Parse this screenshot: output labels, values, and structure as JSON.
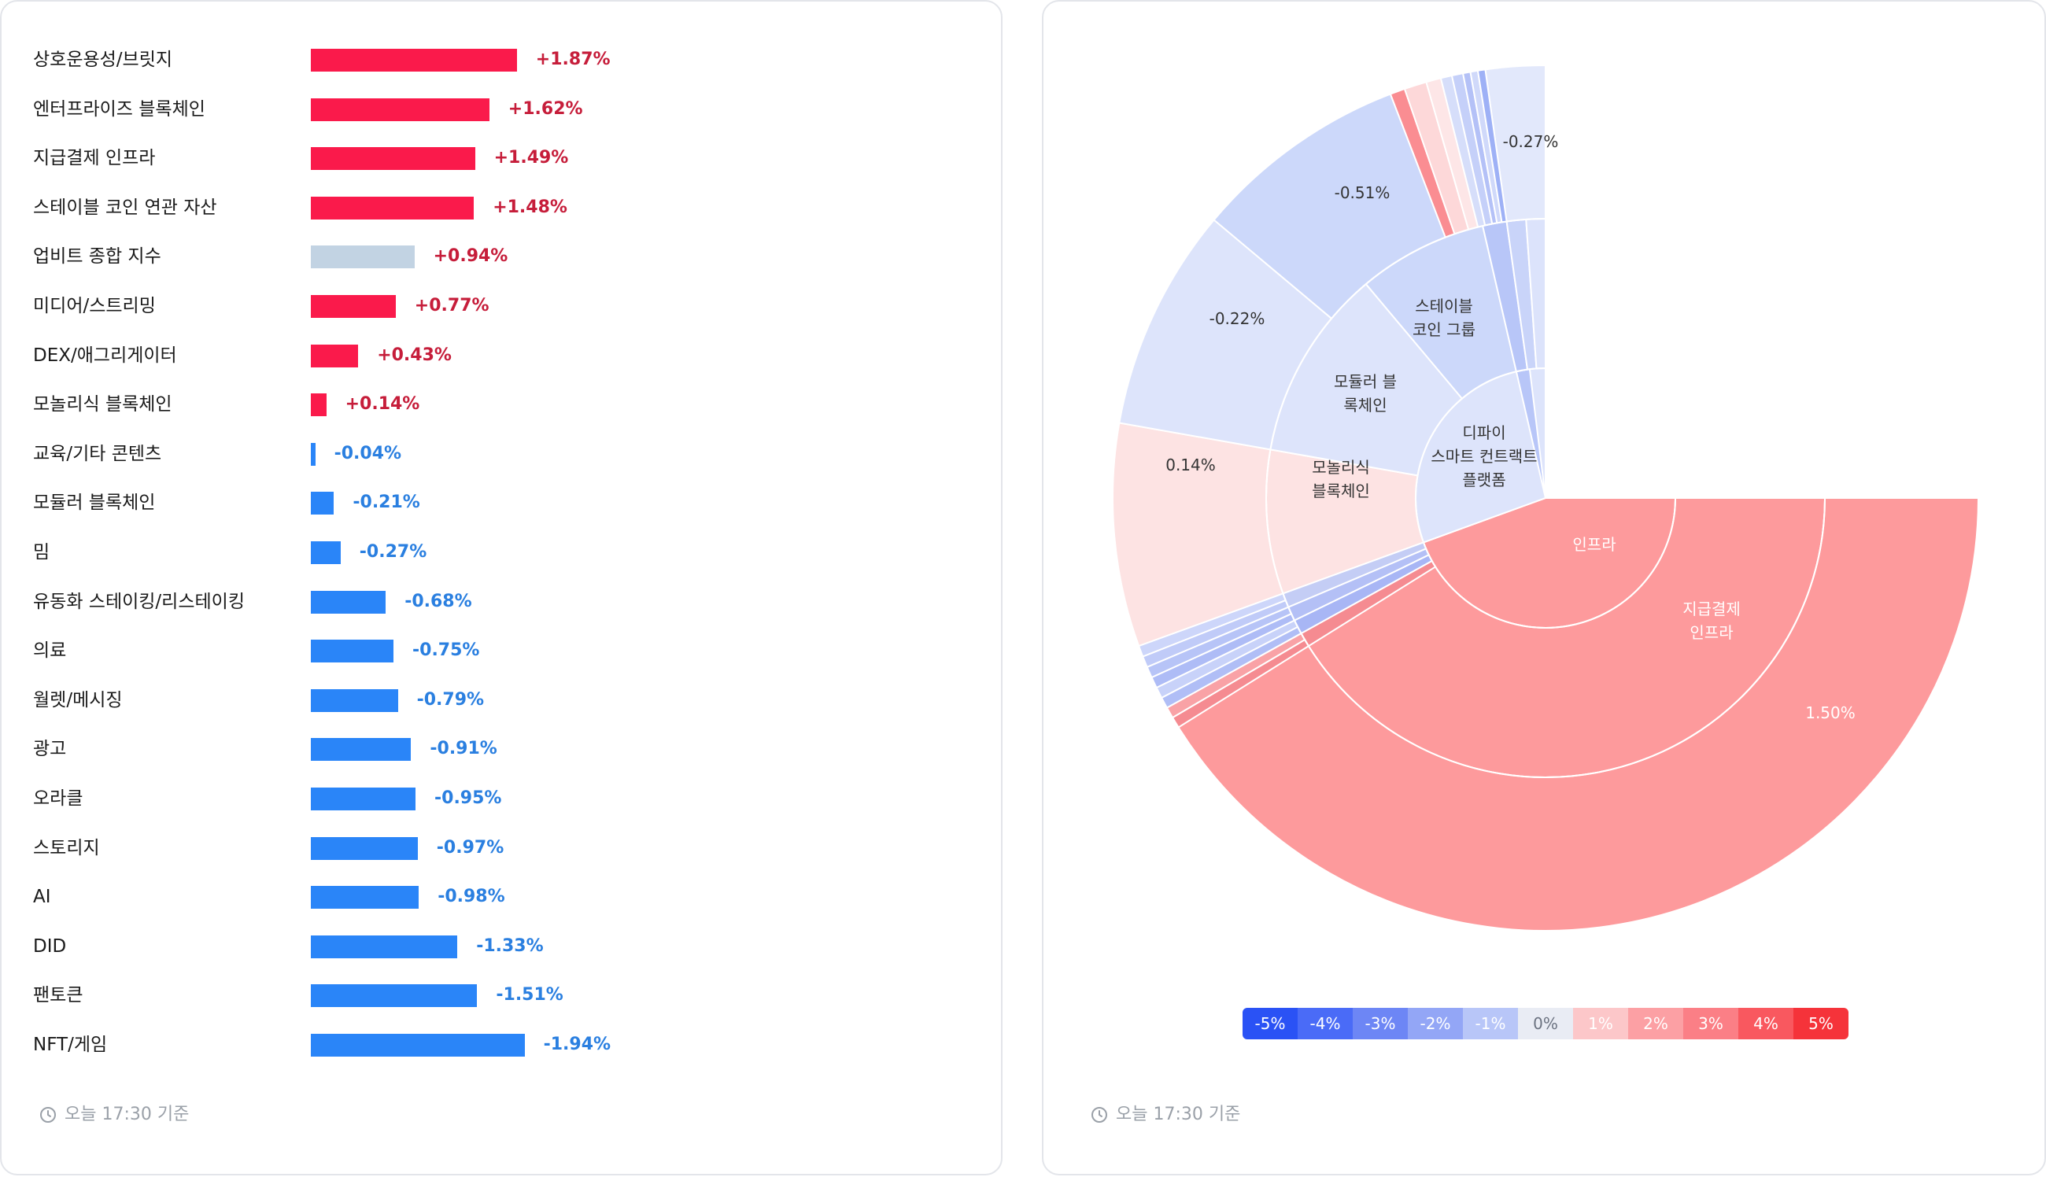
{
  "colors": {
    "positive": "#fa1a4b",
    "negative": "#2a85f8",
    "neutral": "#c2d3e3",
    "positive_text": "#c61d3a",
    "negative_text": "#2a7fe0"
  },
  "left_panel": {
    "timestamp": "오늘 17:30 기준",
    "bars": [
      {
        "label": "상호운용성/브릿지",
        "value": 1.87,
        "display": "+1.87%"
      },
      {
        "label": "엔터프라이즈 블록체인",
        "value": 1.62,
        "display": "+1.62%"
      },
      {
        "label": "지급결제 인프라",
        "value": 1.49,
        "display": "+1.49%"
      },
      {
        "label": "스테이블 코인 연관 자산",
        "value": 1.48,
        "display": "+1.48%"
      },
      {
        "label": "업비트 종합 지수",
        "value": 0.94,
        "display": "+0.94%",
        "is_index": true
      },
      {
        "label": "미디어/스트리밍",
        "value": 0.77,
        "display": "+0.77%"
      },
      {
        "label": "DEX/애그리게이터",
        "value": 0.43,
        "display": "+0.43%"
      },
      {
        "label": "모놀리식 블록체인",
        "value": 0.14,
        "display": "+0.14%"
      },
      {
        "label": "교육/기타 콘텐츠",
        "value": -0.04,
        "display": "-0.04%"
      },
      {
        "label": "모듈러 블록체인",
        "value": -0.21,
        "display": "-0.21%"
      },
      {
        "label": "밈",
        "value": -0.27,
        "display": "-0.27%"
      },
      {
        "label": "유동화 스테이킹/리스테이킹",
        "value": -0.68,
        "display": "-0.68%"
      },
      {
        "label": "의료",
        "value": -0.75,
        "display": "-0.75%"
      },
      {
        "label": "월렛/메시징",
        "value": -0.79,
        "display": "-0.79%"
      },
      {
        "label": "광고",
        "value": -0.91,
        "display": "-0.91%"
      },
      {
        "label": "오라클",
        "value": -0.95,
        "display": "-0.95%"
      },
      {
        "label": "스토리지",
        "value": -0.97,
        "display": "-0.97%"
      },
      {
        "label": "AI",
        "value": -0.98,
        "display": "-0.98%"
      },
      {
        "label": "DID",
        "value": -1.33,
        "display": "-1.33%"
      },
      {
        "label": "팬토큰",
        "value": -1.51,
        "display": "-1.51%"
      },
      {
        "label": "NFT/게임",
        "value": -1.94,
        "display": "-1.94%"
      }
    ]
  },
  "right_panel": {
    "timestamp": "오늘 17:30 기준",
    "legend": {
      "labels": [
        "-5%",
        "-4%",
        "-3%",
        "-2%",
        "-1%",
        "0%",
        "1%",
        "2%",
        "3%",
        "4%",
        "5%"
      ],
      "colors": [
        "#2a52f5",
        "#4a6bf7",
        "#6d86f5",
        "#93a6f6",
        "#b8c6f8",
        "#e9ecf4",
        "#fcc7c9",
        "#fca0a4",
        "#fb7f86",
        "#f9585f",
        "#f5333a"
      ]
    }
  },
  "chart_data": [
    {
      "type": "bar",
      "orientation": "horizontal",
      "categories": [
        "상호운용성/브릿지",
        "엔터프라이즈 블록체인",
        "지급결제 인프라",
        "스테이블 코인 연관 자산",
        "업비트 종합 지수",
        "미디어/스트리밍",
        "DEX/애그리게이터",
        "모놀리식 블록체인",
        "교육/기타 콘텐츠",
        "모듈러 블록체인",
        "밈",
        "유동화 스테이킹/리스테이킹",
        "의료",
        "월렛/메시징",
        "광고",
        "오라클",
        "스토리지",
        "AI",
        "DID",
        "팬토큰",
        "NFT/게임"
      ],
      "values": [
        1.87,
        1.62,
        1.49,
        1.48,
        0.94,
        0.77,
        0.43,
        0.14,
        -0.04,
        -0.21,
        -0.27,
        -0.68,
        -0.75,
        -0.79,
        -0.91,
        -0.95,
        -0.97,
        -0.98,
        -1.33,
        -1.51,
        -1.94
      ]
    },
    {
      "type": "sunburst",
      "rings": {
        "inner": [
          {
            "label": "인프라",
            "start": 90,
            "end": 250,
            "color": "#ffffff"
          },
          {
            "label": "디파이 스마트 컨트랙트 플랫폼",
            "start": 250,
            "end": 360,
            "color": "#dde4fb"
          }
        ],
        "middle": [
          {
            "label": "지급결제 인프라",
            "start": 90,
            "end": 250,
            "color": "#fd9a9c"
          },
          {
            "label": "모놀리식 블록체인",
            "start": 250,
            "end": 280,
            "color": "#fde3e3"
          },
          {
            "label": "모듈러 블록체인",
            "start": 280,
            "end": 320,
            "color": "#dde4fb"
          },
          {
            "label": "스테이블 코인 그룹",
            "start": 320,
            "end": 347,
            "color": "#ccd8fa"
          }
        ],
        "outer": [
          {
            "value": "1.50%",
            "start": 90,
            "end": 250,
            "color": "#fd9a9c"
          },
          {
            "value": "0.14%",
            "start": 250,
            "end": 280,
            "color": "#fde3e3"
          },
          {
            "value": "-0.22%",
            "start": 280,
            "end": 310,
            "color": "#dde4fb"
          },
          {
            "value": "-0.51%",
            "start": 310,
            "end": 339,
            "color": "#ccd8fa"
          },
          {
            "value": "-0.27%",
            "start": 352,
            "end": 360,
            "color": "#e2e8fb"
          }
        ]
      }
    }
  ]
}
